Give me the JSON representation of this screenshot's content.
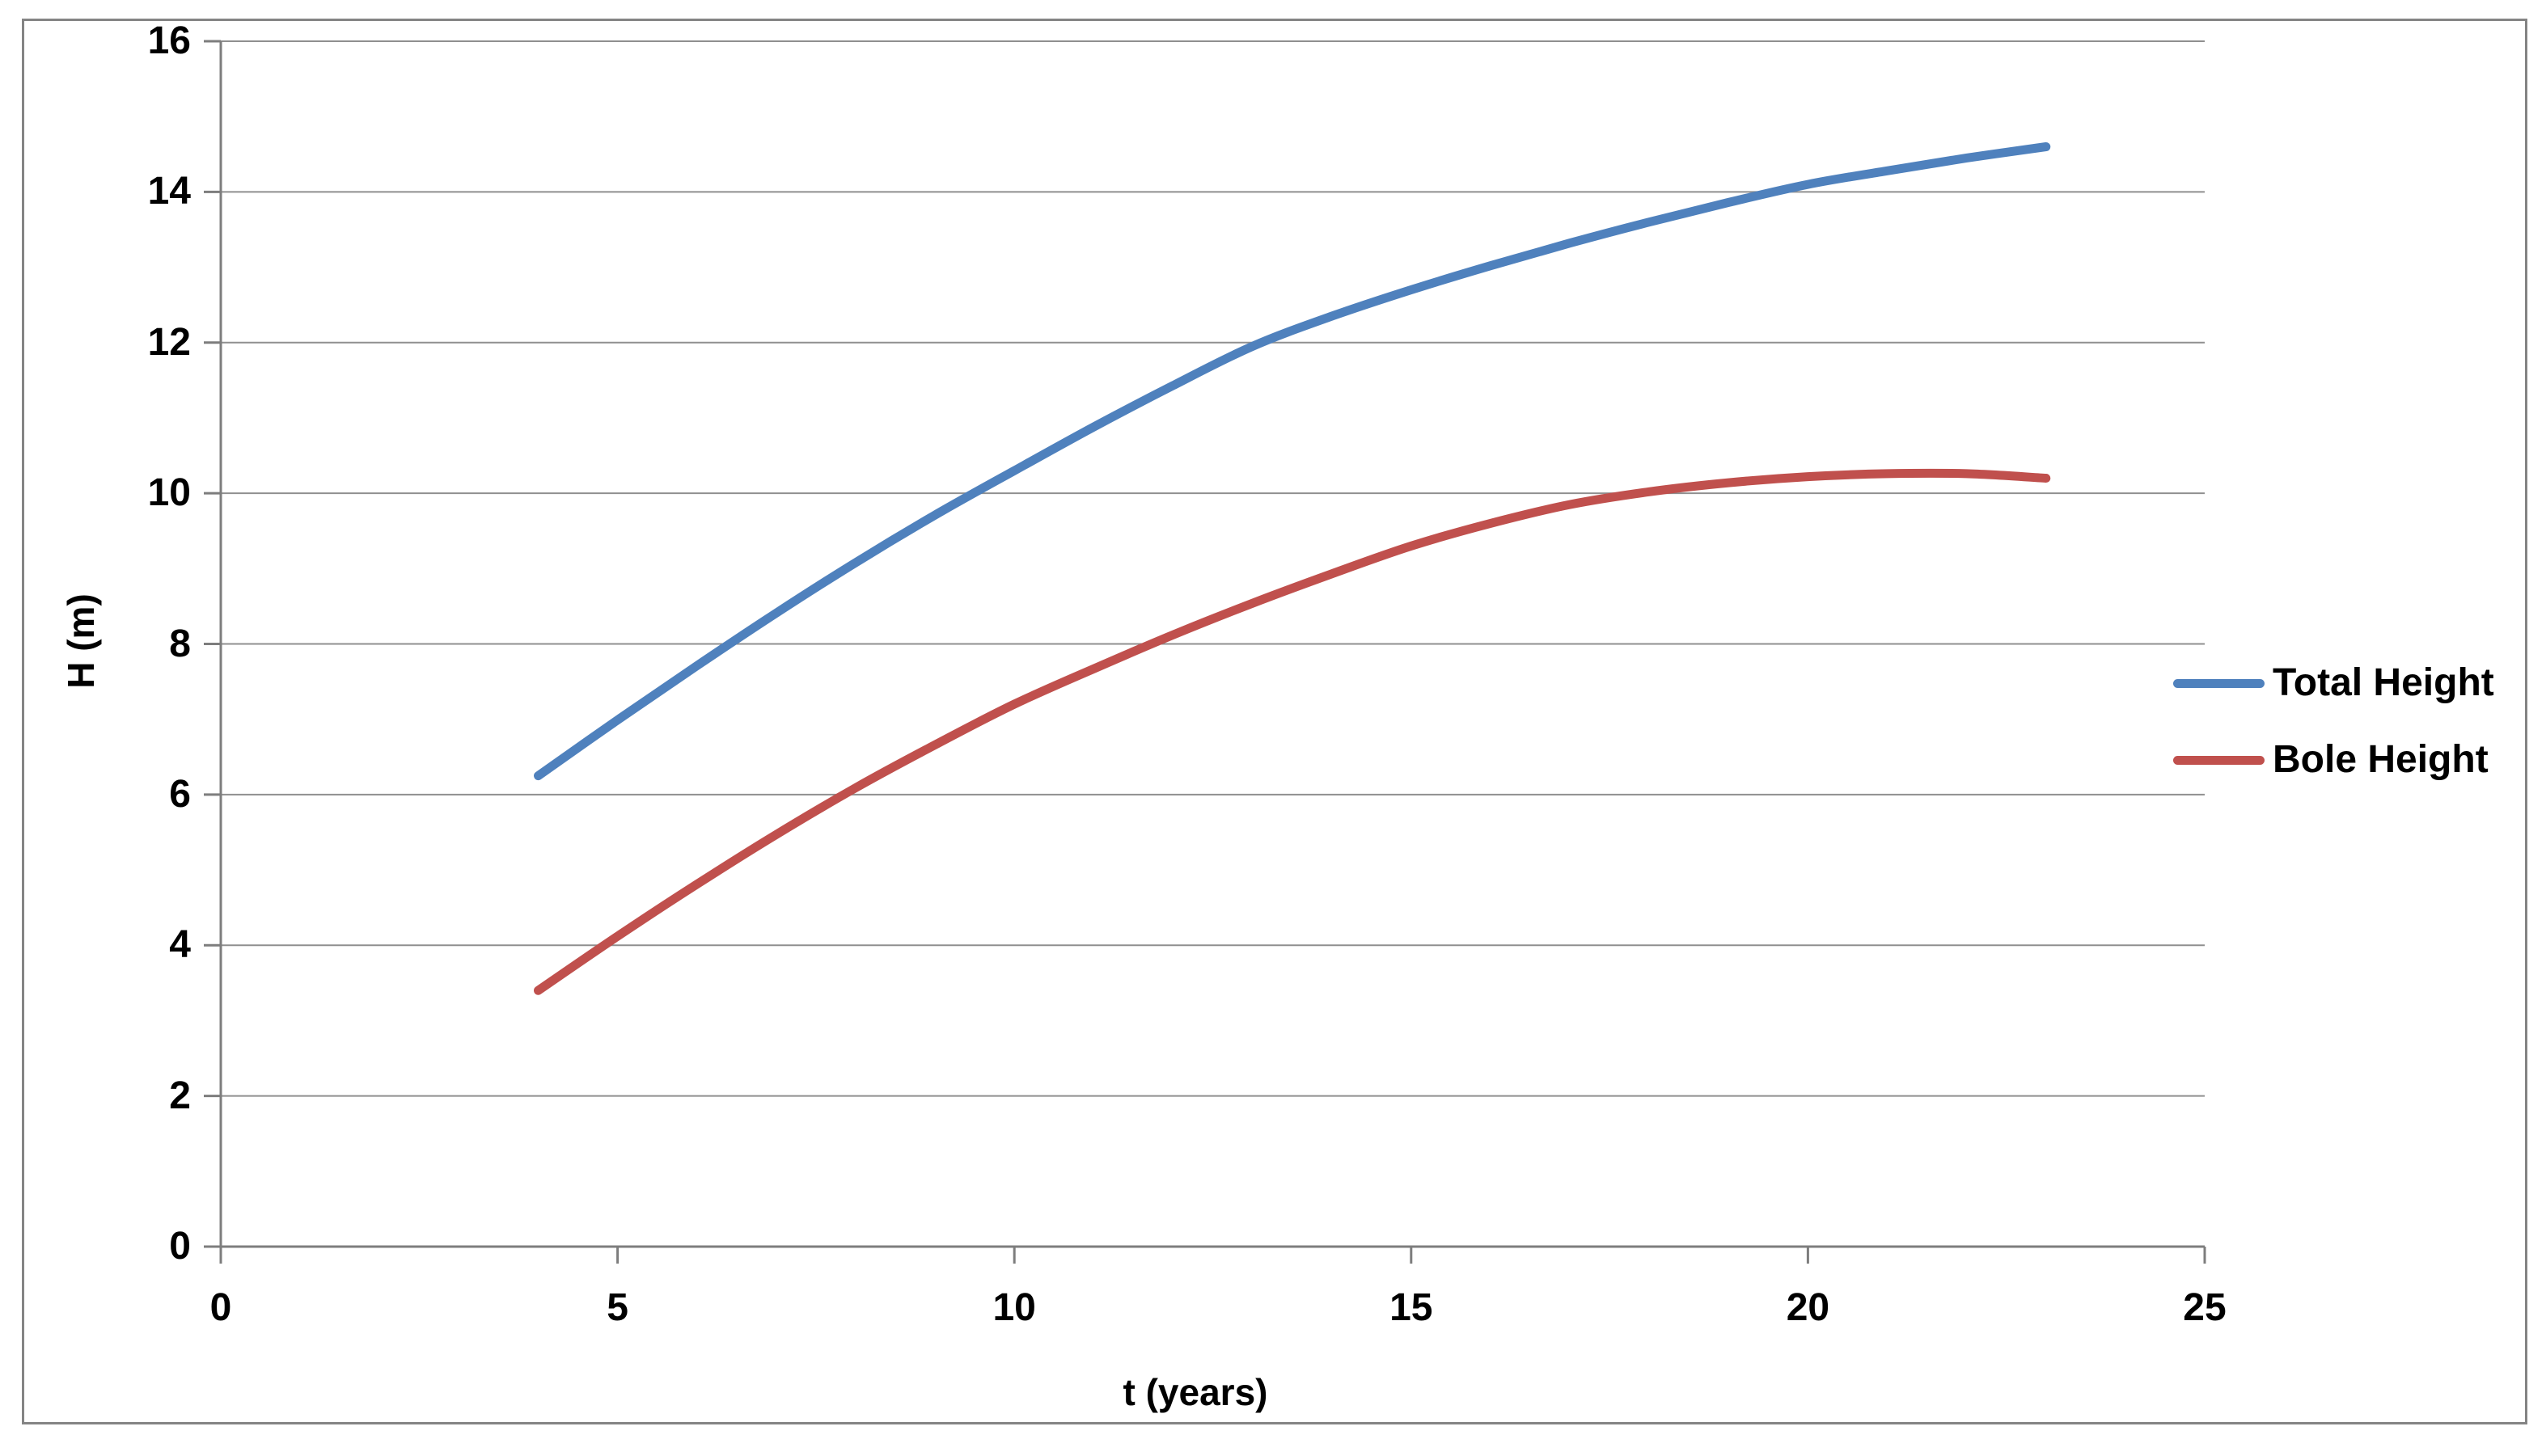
{
  "chart_data": {
    "type": "line",
    "title": "",
    "xlabel": "t (years)",
    "ylabel": "H (m)",
    "xlim": [
      0,
      25
    ],
    "ylim": [
      0,
      16
    ],
    "x_ticks": [
      0,
      5,
      10,
      15,
      20,
      25
    ],
    "y_ticks": [
      0,
      2,
      4,
      6,
      8,
      10,
      12,
      14,
      16
    ],
    "grid": "horizontal",
    "legend_position": "right",
    "x": [
      4,
      5,
      6,
      7,
      8,
      9,
      10,
      11,
      12,
      13,
      14,
      15,
      16,
      17,
      18,
      19,
      20,
      21,
      22,
      23
    ],
    "series": [
      {
        "name": "Total Height",
        "color": "#4F81BD",
        "values": [
          6.25,
          6.99,
          7.71,
          8.41,
          9.08,
          9.71,
          10.3,
          10.88,
          11.43,
          11.95,
          12.35,
          12.7,
          13.02,
          13.32,
          13.6,
          13.86,
          14.1,
          14.28,
          14.45,
          14.6
        ]
      },
      {
        "name": "Bole Height",
        "color": "#C0504D",
        "values": [
          3.4,
          4.12,
          4.81,
          5.47,
          6.09,
          6.66,
          7.2,
          7.67,
          8.12,
          8.54,
          8.93,
          9.3,
          9.6,
          9.85,
          10.02,
          10.14,
          10.22,
          10.26,
          10.26,
          10.2
        ]
      }
    ],
    "colors": {
      "gridline": "#8f8f8f",
      "axis": "#7d7d7d",
      "border": "#848484",
      "text": "#000000",
      "background": "#ffffff"
    }
  }
}
